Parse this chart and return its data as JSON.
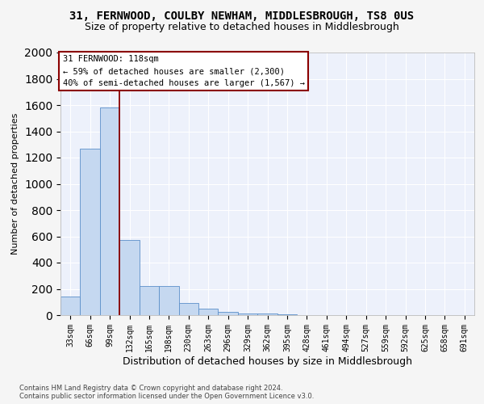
{
  "title1": "31, FERNWOOD, COULBY NEWHAM, MIDDLESBROUGH, TS8 0US",
  "title2": "Size of property relative to detached houses in Middlesbrough",
  "xlabel": "Distribution of detached houses by size in Middlesbrough",
  "ylabel": "Number of detached properties",
  "footer": "Contains HM Land Registry data © Crown copyright and database right 2024.\nContains public sector information licensed under the Open Government Licence v3.0.",
  "annotation_title": "31 FERNWOOD: 118sqm",
  "annotation_line1": "← 59% of detached houses are smaller (2,300)",
  "annotation_line2": "40% of semi-detached houses are larger (1,567) →",
  "bar_color": "#c5d8f0",
  "bar_edge_color": "#5b8fc9",
  "vline_color": "#8b0000",
  "annotation_box_facecolor": "#ffffff",
  "annotation_border_color": "#8b0000",
  "categories": [
    "33sqm",
    "66sqm",
    "99sqm",
    "132sqm",
    "165sqm",
    "198sqm",
    "230sqm",
    "263sqm",
    "296sqm",
    "329sqm",
    "362sqm",
    "395sqm",
    "428sqm",
    "461sqm",
    "494sqm",
    "527sqm",
    "559sqm",
    "592sqm",
    "625sqm",
    "658sqm",
    "691sqm"
  ],
  "values": [
    140,
    1270,
    1580,
    570,
    220,
    220,
    95,
    50,
    25,
    15,
    10,
    5,
    0,
    0,
    0,
    0,
    0,
    0,
    0,
    0,
    0
  ],
  "ylim": [
    0,
    2000
  ],
  "vline_x_index": 2.5,
  "bg_color": "#edf1fb",
  "grid_color": "#ffffff",
  "title1_fontsize": 10,
  "title2_fontsize": 9,
  "ylabel_fontsize": 8,
  "xlabel_fontsize": 9,
  "tick_fontsize": 7,
  "annotation_fontsize": 7.5,
  "footer_fontsize": 6
}
